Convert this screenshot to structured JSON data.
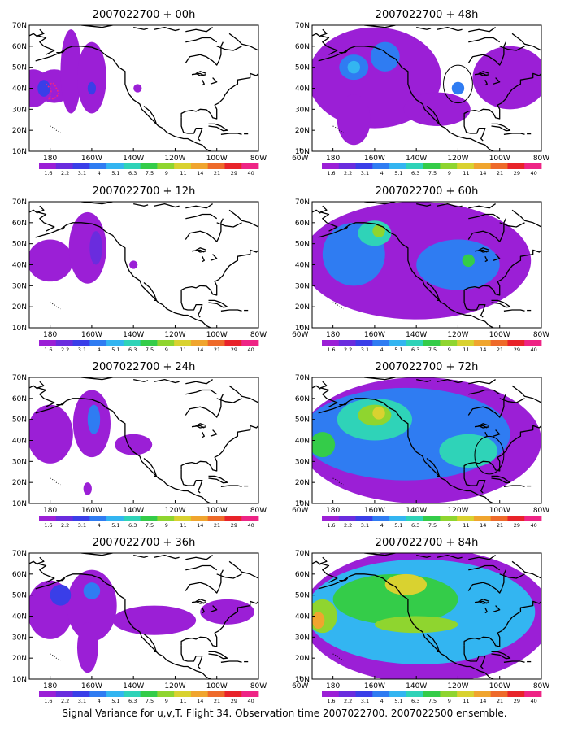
{
  "caption": "Signal Variance for u,v,T. Flight 34. Observation time 2007022700. 2007022500 ensemble.",
  "colors": {
    "levels": [
      "#9b1fd6",
      "#6a2cde",
      "#3a3ee8",
      "#2f7cf2",
      "#33b5f1",
      "#2fd3b8",
      "#34cc49",
      "#8fd52f",
      "#d9d230",
      "#f0a52e",
      "#ee6a2a",
      "#e8232a",
      "#ee2485"
    ],
    "land_outline": "#000000",
    "background": "#ffffff"
  },
  "chart_data": [
    {
      "type": "heatmap",
      "title": "2007022700 + 00h",
      "lead_hours": 0,
      "xlim": [
        170,
        60
      ],
      "ylim": [
        10,
        70
      ],
      "xticks": [
        "180",
        "160W",
        "140W",
        "120W",
        "100W",
        "80W",
        "60W"
      ],
      "yticks": [
        "10N",
        "20N",
        "30N",
        "40N",
        "50N",
        "60N",
        "70N"
      ],
      "colorbar": [
        "1.6",
        "2.2",
        "3.1",
        "4",
        "5.1",
        "6.3",
        "7.5",
        "9",
        "11",
        "14",
        "21",
        "29",
        "40"
      ],
      "blobs": [
        {
          "lon": 168,
          "lat": 40,
          "rx": 8,
          "ry": 9,
          "level": 0
        },
        {
          "lon": 158,
          "lat": 41,
          "rx": 9,
          "ry": 8,
          "level": 0
        },
        {
          "lon": 150,
          "lat": 48,
          "rx": 5,
          "ry": 20,
          "level": 0
        },
        {
          "lon": 140,
          "lat": 45,
          "rx": 7,
          "ry": 17,
          "level": 0
        },
        {
          "lon": 140,
          "lat": 40,
          "rx": 2,
          "ry": 3,
          "level": 2
        },
        {
          "lon": 163,
          "lat": 40,
          "rx": 3,
          "ry": 4,
          "level": 2
        },
        {
          "lon": 118,
          "lat": 40,
          "rx": 2,
          "ry": 2,
          "level": 0
        }
      ],
      "flight_track": true
    },
    {
      "type": "heatmap",
      "title": "2007022700 + 12h",
      "lead_hours": 12,
      "xlim": [
        170,
        60
      ],
      "ylim": [
        10,
        70
      ],
      "xticks": [
        "180",
        "160W",
        "140W",
        "120W",
        "100W",
        "80W",
        "60W"
      ],
      "yticks": [
        "10N",
        "20N",
        "30N",
        "40N",
        "50N",
        "60N",
        "70N"
      ],
      "colorbar": [
        "1.6",
        "2.2",
        "3.1",
        "4",
        "5.1",
        "6.3",
        "7.5",
        "9",
        "11",
        "14",
        "21",
        "29",
        "40"
      ],
      "blobs": [
        {
          "lon": 160,
          "lat": 42,
          "rx": 11,
          "ry": 10,
          "level": 0
        },
        {
          "lon": 142,
          "lat": 48,
          "rx": 9,
          "ry": 17,
          "level": 0
        },
        {
          "lon": 138,
          "lat": 48,
          "rx": 3,
          "ry": 8,
          "level": 1
        },
        {
          "lon": 120,
          "lat": 40,
          "rx": 2,
          "ry": 2,
          "level": 0
        }
      ]
    },
    {
      "type": "heatmap",
      "title": "2007022700 + 24h",
      "lead_hours": 24,
      "xlim": [
        170,
        60
      ],
      "ylim": [
        10,
        70
      ],
      "xticks": [
        "180",
        "160W",
        "140W",
        "120W",
        "100W",
        "80W",
        "60W"
      ],
      "yticks": [
        "10N",
        "20N",
        "30N",
        "40N",
        "50N",
        "60N",
        "70N"
      ],
      "colorbar": [
        "1.6",
        "2.2",
        "3.1",
        "4",
        "5.1",
        "6.3",
        "7.5",
        "9",
        "11",
        "14",
        "21",
        "29",
        "40"
      ],
      "blobs": [
        {
          "lon": 160,
          "lat": 43,
          "rx": 11,
          "ry": 14,
          "level": 0
        },
        {
          "lon": 140,
          "lat": 48,
          "rx": 9,
          "ry": 16,
          "level": 0
        },
        {
          "lon": 139,
          "lat": 50,
          "rx": 3,
          "ry": 7,
          "level": 3
        },
        {
          "lon": 120,
          "lat": 38,
          "rx": 9,
          "ry": 5,
          "level": 0
        },
        {
          "lon": 142,
          "lat": 17,
          "rx": 2,
          "ry": 3,
          "level": 0
        }
      ]
    },
    {
      "type": "heatmap",
      "title": "2007022700 + 36h",
      "lead_hours": 36,
      "xlim": [
        170,
        60
      ],
      "ylim": [
        10,
        70
      ],
      "xticks": [
        "180",
        "160W",
        "140W",
        "120W",
        "100W",
        "80W",
        "60W"
      ],
      "yticks": [
        "10N",
        "20N",
        "30N",
        "40N",
        "50N",
        "60N",
        "70N"
      ],
      "colorbar": [
        "1.6",
        "2.2",
        "3.1",
        "4",
        "5.1",
        "6.3",
        "7.5",
        "9",
        "11",
        "14",
        "21",
        "29",
        "40"
      ],
      "blobs": [
        {
          "lon": 160,
          "lat": 43,
          "rx": 11,
          "ry": 14,
          "level": 0
        },
        {
          "lon": 140,
          "lat": 45,
          "rx": 12,
          "ry": 17,
          "level": 0
        },
        {
          "lon": 142,
          "lat": 25,
          "rx": 5,
          "ry": 12,
          "level": 0
        },
        {
          "lon": 110,
          "lat": 38,
          "rx": 20,
          "ry": 7,
          "level": 0
        },
        {
          "lon": 75,
          "lat": 42,
          "rx": 13,
          "ry": 6,
          "level": 0
        },
        {
          "lon": 155,
          "lat": 50,
          "rx": 5,
          "ry": 5,
          "level": 2
        },
        {
          "lon": 140,
          "lat": 52,
          "rx": 4,
          "ry": 4,
          "level": 3
        }
      ]
    },
    {
      "type": "heatmap",
      "title": "2007022700 + 48h",
      "lead_hours": 48,
      "xlim": [
        170,
        60
      ],
      "ylim": [
        10,
        70
      ],
      "xticks": [
        "180",
        "160W",
        "140W",
        "120W",
        "100W",
        "80W",
        "60W"
      ],
      "yticks": [
        "10N",
        "20N",
        "30N",
        "40N",
        "50N",
        "60N",
        "70N"
      ],
      "colorbar": [
        "1.6",
        "2.2",
        "3.1",
        "4",
        "5.1",
        "6.3",
        "7.5",
        "9",
        "11",
        "14",
        "21",
        "29",
        "40"
      ],
      "blobs": [
        {
          "lon": 140,
          "lat": 45,
          "rx": 32,
          "ry": 24,
          "level": 0
        },
        {
          "lon": 75,
          "lat": 45,
          "rx": 18,
          "ry": 15,
          "level": 0
        },
        {
          "lon": 150,
          "lat": 25,
          "rx": 8,
          "ry": 12,
          "level": 0
        },
        {
          "lon": 110,
          "lat": 30,
          "rx": 16,
          "ry": 8,
          "level": 0
        },
        {
          "lon": 150,
          "lat": 50,
          "rx": 7,
          "ry": 6,
          "level": 3
        },
        {
          "lon": 135,
          "lat": 55,
          "rx": 7,
          "ry": 7,
          "level": 3
        },
        {
          "lon": 100,
          "lat": 40,
          "rx": 3,
          "ry": 3,
          "level": 3
        },
        {
          "lon": 150,
          "lat": 50,
          "rx": 3,
          "ry": 3,
          "level": 4
        }
      ],
      "circle": {
        "lon": 100,
        "lat": 42,
        "rlon": 7,
        "rlat": 9
      }
    },
    {
      "type": "heatmap",
      "title": "2007022700 + 60h",
      "lead_hours": 60,
      "xlim": [
        170,
        60
      ],
      "ylim": [
        10,
        70
      ],
      "xticks": [
        "180",
        "160W",
        "140W",
        "120W",
        "100W",
        "80W",
        "60W"
      ],
      "yticks": [
        "10N",
        "20N",
        "30N",
        "40N",
        "50N",
        "60N",
        "70N"
      ],
      "colorbar": [
        "1.6",
        "2.2",
        "3.1",
        "4",
        "5.1",
        "6.3",
        "7.5",
        "9",
        "11",
        "14",
        "21",
        "29",
        "40"
      ],
      "blobs": [
        {
          "lon": 120,
          "lat": 42,
          "rx": 55,
          "ry": 28,
          "level": 0
        },
        {
          "lon": 150,
          "lat": 45,
          "rx": 15,
          "ry": 15,
          "level": 3
        },
        {
          "lon": 100,
          "lat": 40,
          "rx": 20,
          "ry": 12,
          "level": 3
        },
        {
          "lon": 140,
          "lat": 55,
          "rx": 8,
          "ry": 6,
          "level": 5
        },
        {
          "lon": 138,
          "lat": 56,
          "rx": 3,
          "ry": 3,
          "level": 7
        },
        {
          "lon": 95,
          "lat": 42,
          "rx": 3,
          "ry": 3,
          "level": 6
        }
      ]
    },
    {
      "type": "heatmap",
      "title": "2007022700 + 72h",
      "lead_hours": 72,
      "xlim": [
        170,
        60
      ],
      "ylim": [
        10,
        70
      ],
      "xticks": [
        "180",
        "160W",
        "140W",
        "120W",
        "100W",
        "80W",
        "60W"
      ],
      "yticks": [
        "10N",
        "20N",
        "30N",
        "40N",
        "50N",
        "60N",
        "70N"
      ],
      "colorbar": [
        "1.6",
        "2.2",
        "3.1",
        "4",
        "5.1",
        "6.3",
        "7.5",
        "9",
        "11",
        "14",
        "21",
        "29",
        "40"
      ],
      "blobs": [
        {
          "lon": 118,
          "lat": 40,
          "rx": 58,
          "ry": 30,
          "level": 0
        },
        {
          "lon": 125,
          "lat": 43,
          "rx": 50,
          "ry": 22,
          "level": 3
        },
        {
          "lon": 140,
          "lat": 50,
          "rx": 18,
          "ry": 10,
          "level": 5
        },
        {
          "lon": 140,
          "lat": 52,
          "rx": 8,
          "ry": 5,
          "level": 7
        },
        {
          "lon": 138,
          "lat": 53,
          "rx": 3,
          "ry": 3,
          "level": 8
        },
        {
          "lon": 95,
          "lat": 35,
          "rx": 14,
          "ry": 8,
          "level": 5
        },
        {
          "lon": 165,
          "lat": 38,
          "rx": 6,
          "ry": 6,
          "level": 6
        }
      ],
      "circle": {
        "lon": 85,
        "lat": 33,
        "rlon": 7,
        "rlat": 9
      }
    },
    {
      "type": "heatmap",
      "title": "2007022700 + 84h",
      "lead_hours": 84,
      "xlim": [
        170,
        60
      ],
      "ylim": [
        10,
        70
      ],
      "xticks": [
        "180",
        "160W",
        "140W",
        "120W",
        "100W",
        "80W",
        "60W"
      ],
      "yticks": [
        "10N",
        "20N",
        "30N",
        "40N",
        "50N",
        "60N",
        "70N"
      ],
      "colorbar": [
        "1.6",
        "2.2",
        "3.1",
        "4",
        "5.1",
        "6.3",
        "7.5",
        "9",
        "11",
        "14",
        "21",
        "29",
        "40"
      ],
      "blobs": [
        {
          "lon": 115,
          "lat": 40,
          "rx": 60,
          "ry": 32,
          "level": 0
        },
        {
          "lon": 118,
          "lat": 42,
          "rx": 55,
          "ry": 25,
          "level": 4
        },
        {
          "lon": 130,
          "lat": 48,
          "rx": 30,
          "ry": 12,
          "level": 6
        },
        {
          "lon": 125,
          "lat": 55,
          "rx": 10,
          "ry": 5,
          "level": 8
        },
        {
          "lon": 120,
          "lat": 36,
          "rx": 20,
          "ry": 4,
          "level": 7
        },
        {
          "lon": 165,
          "lat": 40,
          "rx": 7,
          "ry": 8,
          "level": 7
        },
        {
          "lon": 167,
          "lat": 38,
          "rx": 3,
          "ry": 4,
          "level": 9
        }
      ]
    }
  ]
}
